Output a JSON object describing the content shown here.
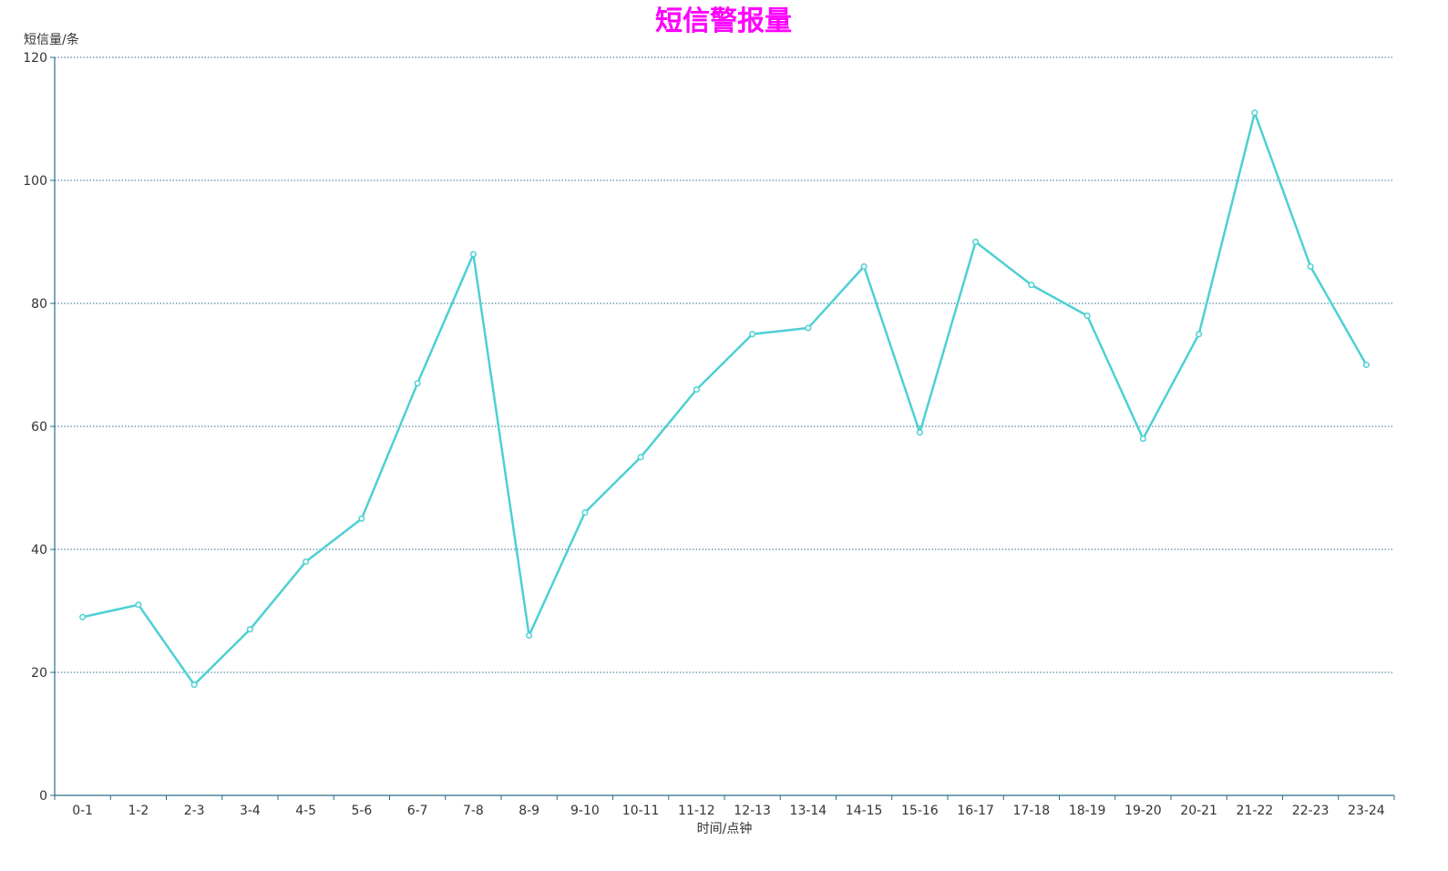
{
  "chart_data": {
    "type": "line",
    "title": "短信警报量",
    "ylabel": "短信量/条",
    "xlabel": "时间/点钟",
    "categories": [
      "0-1",
      "1-2",
      "2-3",
      "3-4",
      "4-5",
      "5-6",
      "6-7",
      "7-8",
      "8-9",
      "9-10",
      "10-11",
      "11-12",
      "12-13",
      "13-14",
      "14-15",
      "15-16",
      "16-17",
      "17-18",
      "18-19",
      "19-20",
      "20-21",
      "21-22",
      "22-23",
      "23-24"
    ],
    "values": [
      29,
      31,
      18,
      27,
      38,
      45,
      67,
      88,
      26,
      46,
      55,
      66,
      75,
      76,
      86,
      59,
      90,
      83,
      78,
      58,
      75,
      111,
      86,
      70
    ],
    "ylim": [
      0,
      120
    ],
    "yticks": [
      0,
      20,
      40,
      60,
      80,
      100,
      120
    ],
    "grid": true,
    "colors": {
      "title": "#ff00ff",
      "line": "#4dd0d4",
      "axis": "#2a6f8a",
      "grid": "#2a6f8a",
      "text": "#333333"
    }
  }
}
